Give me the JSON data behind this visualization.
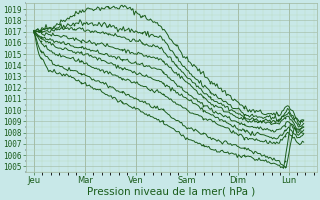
{
  "bg_color": "#c8e8e8",
  "grid_color_major": "#a0b8a0",
  "grid_color_minor": "#b8d8b8",
  "line_color": "#1a5c1a",
  "ylabel_ticks": [
    1005,
    1006,
    1007,
    1008,
    1009,
    1010,
    1011,
    1012,
    1013,
    1014,
    1015,
    1016,
    1017,
    1018,
    1019
  ],
  "ylim": [
    1004.5,
    1019.5
  ],
  "xlabel": "Pression niveau de la mer( hPa )",
  "x_tick_labels": [
    "Jeu",
    "Mar",
    "Ven",
    "Sam",
    "Dim",
    "Lun"
  ],
  "x_tick_positions": [
    0,
    1,
    2,
    3,
    4,
    5
  ],
  "xlim": [
    -0.15,
    5.55
  ],
  "tick_fontsize": 5.5,
  "xlabel_fontsize": 7.5,
  "line_width": 0.7,
  "lines": [
    {
      "key_x": [
        0,
        0.3,
        1.0,
        1.8,
        2.5,
        3.0,
        3.5,
        4.2,
        4.8,
        5.0,
        5.2,
        5.3
      ],
      "key_y": [
        1017,
        1017.3,
        1019.0,
        1019.2,
        1017.5,
        1014.5,
        1012.5,
        1010.0,
        1009.5,
        1010.5,
        1009.0,
        1009.2
      ]
    },
    {
      "key_x": [
        0,
        0.3,
        0.9,
        1.5,
        2.5,
        3.0,
        3.5,
        4.2,
        4.8,
        5.0,
        5.2,
        5.3
      ],
      "key_y": [
        1017,
        1017.2,
        1017.8,
        1017.5,
        1016.5,
        1013.5,
        1011.5,
        1009.5,
        1009.2,
        1010.0,
        1008.8,
        1009.0
      ]
    },
    {
      "key_x": [
        0,
        0.2,
        0.8,
        1.5,
        2.5,
        3.0,
        3.5,
        4.2,
        4.8,
        5.0,
        5.2,
        5.3
      ],
      "key_y": [
        1017,
        1017.0,
        1017.3,
        1016.8,
        1015.5,
        1013.0,
        1011.0,
        1009.2,
        1009.0,
        1009.8,
        1008.5,
        1008.8
      ]
    },
    {
      "key_x": [
        0,
        0.2,
        0.6,
        1.2,
        2.5,
        3.0,
        3.5,
        4.2,
        4.8,
        5.0,
        5.2,
        5.3
      ],
      "key_y": [
        1017,
        1016.8,
        1016.5,
        1016.0,
        1014.5,
        1012.5,
        1010.5,
        1009.0,
        1008.8,
        1009.5,
        1008.2,
        1008.5
      ]
    },
    {
      "key_x": [
        0,
        0.15,
        0.5,
        1.0,
        2.5,
        3.0,
        3.5,
        4.2,
        4.8,
        5.0,
        5.2,
        5.3
      ],
      "key_y": [
        1017,
        1016.5,
        1016.0,
        1015.5,
        1013.5,
        1011.5,
        1010.0,
        1008.5,
        1008.2,
        1009.0,
        1008.0,
        1008.2
      ]
    },
    {
      "key_x": [
        0,
        0.15,
        0.5,
        1.0,
        2.5,
        3.0,
        3.5,
        4.2,
        4.8,
        5.0,
        5.2,
        5.3
      ],
      "key_y": [
        1017,
        1016.3,
        1015.5,
        1015.0,
        1012.5,
        1011.0,
        1009.5,
        1008.0,
        1007.5,
        1008.5,
        1007.5,
        1007.8
      ]
    },
    {
      "key_x": [
        0,
        0.15,
        0.4,
        0.8,
        2.5,
        3.0,
        3.5,
        4.2,
        4.8,
        5.0,
        5.2,
        5.3
      ],
      "key_y": [
        1017,
        1016.0,
        1015.0,
        1014.5,
        1011.5,
        1010.0,
        1009.0,
        1007.5,
        1007.0,
        1008.0,
        1007.0,
        1007.2
      ]
    },
    {
      "key_x": [
        0,
        0.1,
        0.4,
        0.8,
        2.5,
        3.0,
        3.5,
        4.2,
        4.8,
        4.95,
        5.1,
        5.2,
        5.3
      ],
      "key_y": [
        1017,
        1015.5,
        1014.0,
        1013.5,
        1010.0,
        1008.5,
        1007.5,
        1006.5,
        1005.5,
        1004.8,
        1008.5,
        1007.8,
        1008.0
      ]
    },
    {
      "key_x": [
        0,
        0.1,
        0.3,
        0.7,
        2.5,
        3.0,
        3.5,
        4.2,
        4.8,
        4.9,
        5.05,
        5.15,
        5.3
      ],
      "key_y": [
        1017,
        1015.0,
        1013.5,
        1013.0,
        1009.0,
        1007.5,
        1006.5,
        1005.8,
        1005.2,
        1004.8,
        1009.0,
        1008.2,
        1008.5
      ]
    }
  ]
}
